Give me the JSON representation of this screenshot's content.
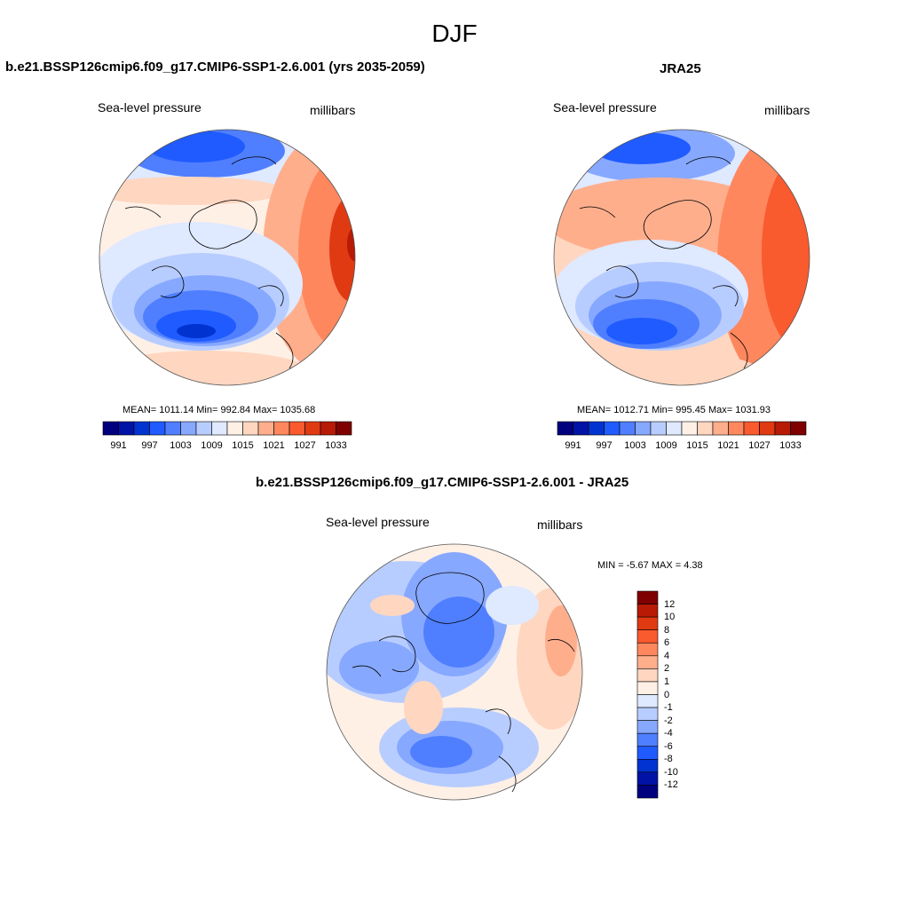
{
  "page": {
    "title": "DJF"
  },
  "panels": [
    {
      "title": "b.e21.BSSP126cmip6.f09_g17.CMIP6-SSP1-2.6.001 (yrs 2035-2059)",
      "variable": "Sea-level pressure",
      "units": "millibars",
      "stats": "MEAN= 1011.14  Min= 992.84  Max= 1035.68"
    },
    {
      "title": "JRA25",
      "variable": "Sea-level pressure",
      "units": "millibars",
      "stats": "MEAN= 1012.71  Min= 995.45  Max= 1031.93"
    },
    {
      "title": "b.e21.BSSP126cmip6.f09_g17.CMIP6-SSP1-2.6.001 - JRA25",
      "variable": "Sea-level pressure",
      "units": "millibars",
      "stats": "MIN =  -5.67 MAX =   4.38"
    }
  ],
  "colorbar_abs": {
    "labels": [
      "991",
      "997",
      "1003",
      "1009",
      "1015",
      "1021",
      "1027",
      "1033"
    ],
    "colors": [
      "#00007f",
      "#0013a6",
      "#0033d0",
      "#1f5bff",
      "#4f7fff",
      "#87a8ff",
      "#b8cdff",
      "#dfe9ff",
      "#fff0e6",
      "#ffd6c0",
      "#ffae8c",
      "#ff875d",
      "#f95a2e",
      "#e03a12",
      "#b71a05",
      "#7f0000"
    ]
  },
  "colorbar_diff": {
    "labels": [
      "12",
      "10",
      "8",
      "6",
      "4",
      "2",
      "1",
      "0",
      "-1",
      "-2",
      "-4",
      "-6",
      "-8",
      "-10",
      "-12"
    ],
    "colors": [
      "#7f0000",
      "#b71a05",
      "#e03a12",
      "#f95a2e",
      "#ff875d",
      "#ffae8c",
      "#ffd6c0",
      "#fff0e6",
      "#dfe9ff",
      "#b8cdff",
      "#87a8ff",
      "#4f7fff",
      "#1f5bff",
      "#0033d0",
      "#0013a6",
      "#00007f"
    ]
  }
}
